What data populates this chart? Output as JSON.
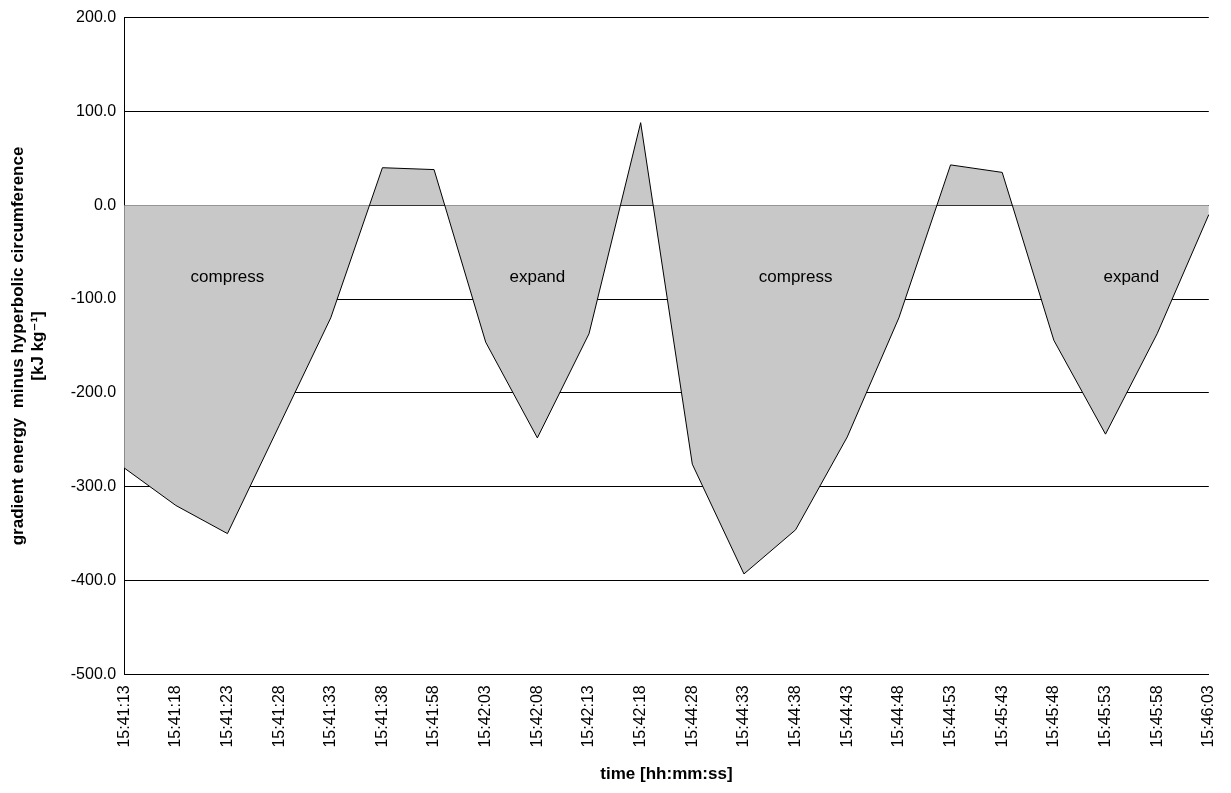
{
  "chart_data": {
    "type": "area",
    "xlabel": "time [hh:mm:ss]",
    "ylabel": "gradient energy  minus hyperbolic circumference\n[kJ kg⁻¹]",
    "categories": [
      "15:41:13",
      "15:41:18",
      "15:41:23",
      "15:41:28",
      "15:41:33",
      "15:41:38",
      "15:41:58",
      "15:42:03",
      "15:42:08",
      "15:42:13",
      "15:42:18",
      "15:44:28",
      "15:44:33",
      "15:44:38",
      "15:44:43",
      "15:44:48",
      "15:44:53",
      "15:45:43",
      "15:45:48",
      "15:45:53",
      "15:45:58",
      "15:46:03"
    ],
    "series": [
      {
        "color": "#c8c8c8",
        "values": [
          -280,
          -320,
          -350,
          -235,
          -120,
          40,
          38,
          -146,
          -248,
          -137,
          88,
          -276,
          -393,
          -346,
          -247,
          -120,
          43,
          35,
          -144,
          -244,
          -137,
          -10
        ]
      }
    ],
    "ylim": [
      -500,
      200
    ],
    "yticks": [
      {
        "value": -500,
        "label": "-500.0"
      },
      {
        "value": -400,
        "label": "-400.0"
      },
      {
        "value": -300,
        "label": "-300.0"
      },
      {
        "value": -200,
        "label": "-200.0"
      },
      {
        "value": -100,
        "label": "-100.0"
      },
      {
        "value": 0,
        "label": "0.0"
      },
      {
        "value": 100,
        "label": "100.0"
      },
      {
        "value": 200,
        "label": "200.0"
      }
    ],
    "grid": "y",
    "legend": false,
    "marker": "none",
    "annotations": [
      "compress",
      "expand",
      "compress",
      "expand"
    ]
  }
}
